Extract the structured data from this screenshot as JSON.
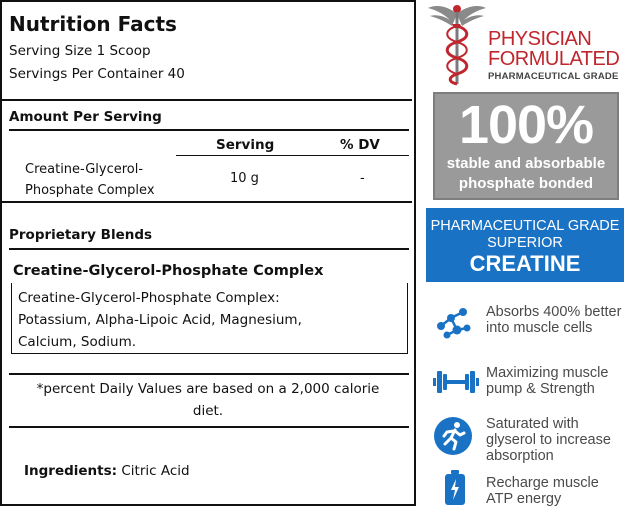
{
  "label": {
    "title": "Nutrition Facts",
    "serving_size": "Serving Size 1 Scoop",
    "servings_per_container": "Servings Per Container 40",
    "amount_per_serving": "Amount Per Serving",
    "columns": {
      "serving": "Serving",
      "dv": "% DV"
    },
    "ingredient_row": {
      "name_line1": "Creatine-Glycerol-",
      "name_line2": "Phosphate Complex",
      "serving": "10 g",
      "dv": "-"
    },
    "proprietary_blends": "Proprietary Blends",
    "blend": {
      "title": "Creatine-Glycerol-Phosphate Complex",
      "line1": "Creatine-Glycerol-Phosphate Complex:",
      "line2": "Potassium, Alpha-Lipoic Acid, Magnesium,",
      "line3": "Calcium, Sodium."
    },
    "footnote_line1": "*percent Daily Values are based on a 2,000 calorie",
    "footnote_line2": "diet.",
    "ingredients_label": "Ingredients:",
    "ingredients_value": " Citric Acid"
  },
  "badges": {
    "physician": {
      "line1": "PHYSICIAN",
      "line2": "FORMULATED",
      "line3": "PHARMACEUTICAL GRADE",
      "icon": "caduceus-icon",
      "color": "#c0262d"
    },
    "percent": {
      "big": "100%",
      "line1": "stable and absorbable",
      "line2": "phosphate bonded",
      "color": "#9a9a9a"
    },
    "creatine": {
      "line1": "PHARMACEUTICAL GRADE",
      "line2": "SUPERIOR",
      "line3": "CREATINE",
      "color": "#1a72c4"
    }
  },
  "features": [
    {
      "icon": "molecule-icon",
      "line1": "Absorbs 400% better",
      "line2": "into muscle cells",
      "line3": ""
    },
    {
      "icon": "dumbbell-icon",
      "line1": "Maximizing muscle",
      "line2": "pump & Strength",
      "line3": ""
    },
    {
      "icon": "runner-icon",
      "line1": "Saturated with",
      "line2": "glyserol to increase",
      "line3": "absorption"
    },
    {
      "icon": "battery-icon",
      "line1": "Recharge muscle",
      "line2": "ATP energy",
      "line3": ""
    }
  ],
  "accent_blue": "#1a72c4"
}
